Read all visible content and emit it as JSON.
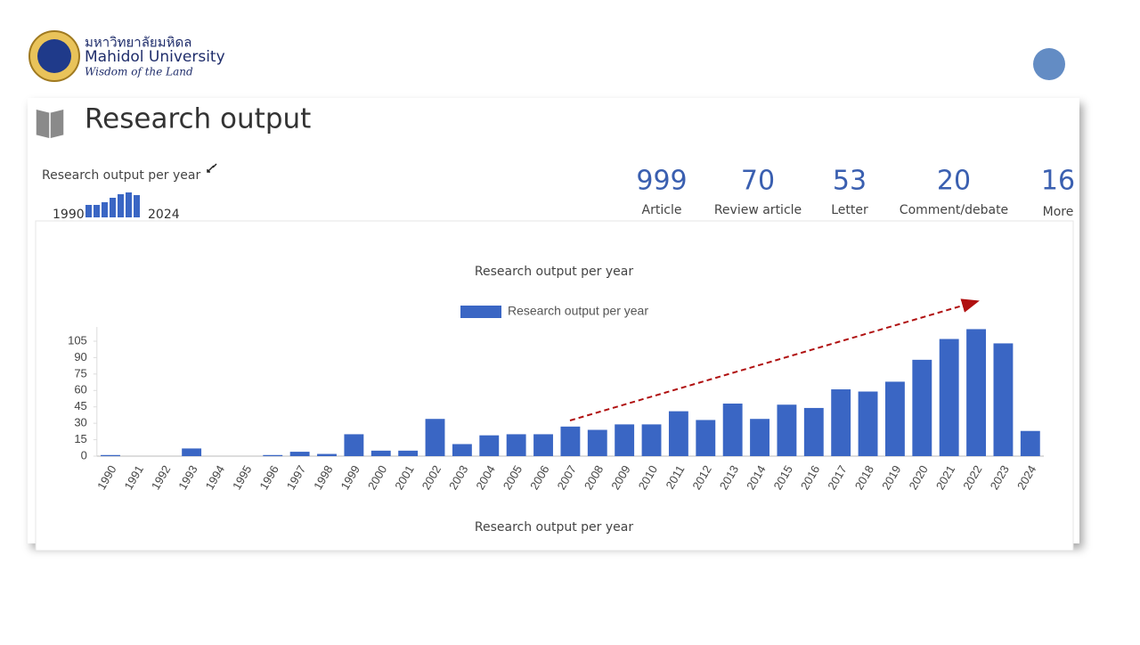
{
  "header": {
    "thai_name": "มหาวิทยาลัยมหิดล",
    "name": "Mahidol University",
    "motto": "Wisdom of the Land"
  },
  "section_title": "Research output",
  "summary_label": "Research output per year",
  "stats": [
    {
      "value": 999,
      "label": "Article"
    },
    {
      "value": 70,
      "label": "Review article"
    },
    {
      "value": 53,
      "label": "Letter"
    },
    {
      "value": 20,
      "label": "Comment/debate"
    },
    {
      "value": 16,
      "label": "More"
    }
  ],
  "chart_data": {
    "type": "bar",
    "title": "Research output per year",
    "x_label": "Research output per year",
    "categories": [
      "1990",
      "1991",
      "1992",
      "1993",
      "1994",
      "1995",
      "1996",
      "1997",
      "1998",
      "1999",
      "2000",
      "2001",
      "2002",
      "2003",
      "2004",
      "2005",
      "2006",
      "2007",
      "2008",
      "2009",
      "2010",
      "2011",
      "2012",
      "2013",
      "2014",
      "2015",
      "2016",
      "2017",
      "2018",
      "2019",
      "2020",
      "2021",
      "2022",
      "2023",
      "2024"
    ],
    "series": [
      {
        "name": "Research output per year",
        "color": "#3a66c4",
        "values": [
          1,
          0,
          0,
          7,
          0,
          0,
          1,
          4,
          2,
          20,
          5,
          5,
          34,
          11,
          19,
          20,
          20,
          27,
          24,
          29,
          29,
          41,
          33,
          48,
          34,
          47,
          44,
          61,
          59,
          68,
          88,
          107,
          116,
          103,
          23
        ]
      }
    ],
    "ylim": [
      0,
      118
    ],
    "yticks": [
      0,
      15,
      30,
      45,
      60,
      75,
      90,
      105
    ],
    "legend": "top"
  }
}
